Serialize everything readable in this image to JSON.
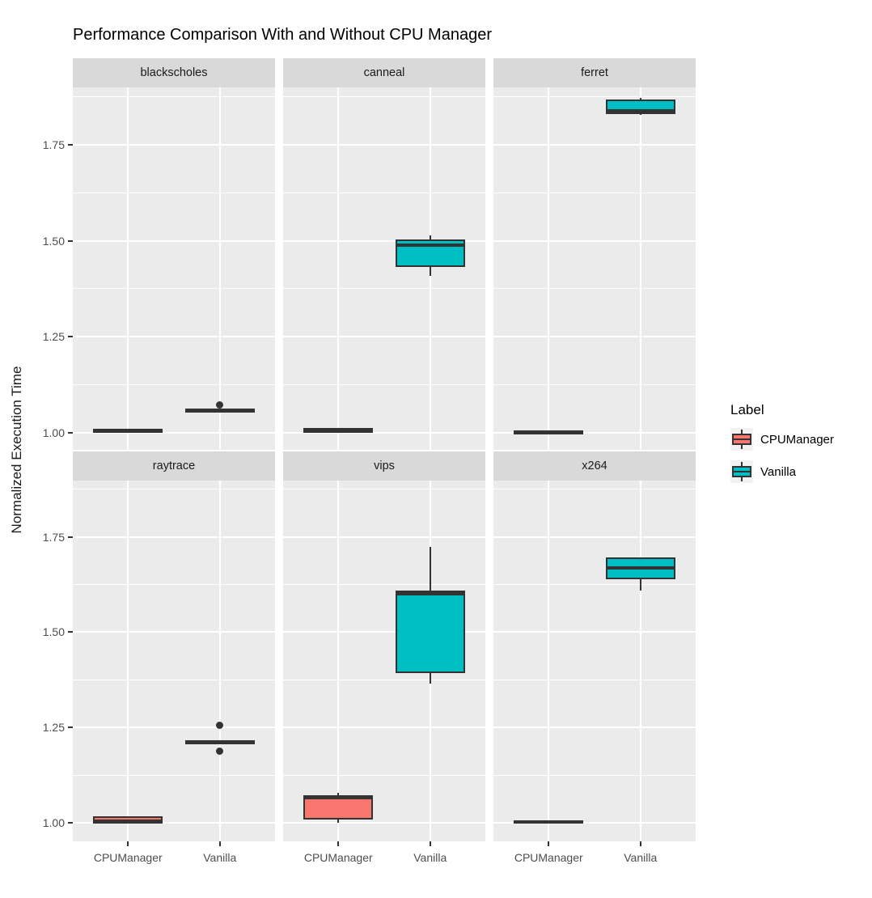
{
  "title": "Performance Comparison With and Without CPU Manager",
  "y_axis": {
    "label": "Normalized Execution Time",
    "ticks": [
      "1.00",
      "1.25",
      "1.50",
      "1.75"
    ]
  },
  "x_axis": {
    "categories": [
      "CPUManager",
      "Vanilla"
    ]
  },
  "legend": {
    "title": "Label",
    "entries": [
      {
        "label": "CPUManager",
        "color": "#F8766D"
      },
      {
        "label": "Vanilla",
        "color": "#00BFC4"
      }
    ]
  },
  "colors": {
    "panel_bg": "#EBEBEB",
    "strip_bg": "#D9D9D9",
    "gridline": "#FFFFFF",
    "box_stroke": "#333333",
    "axis_text": "#4D4D4D",
    "cpumanager_fill": "#F8766D",
    "vanilla_fill": "#00BFC4"
  },
  "chart_data": {
    "type": "boxplot",
    "title": "Performance Comparison With and Without CPU Manager",
    "ylabel": "Normalized Execution Time",
    "xlabel": "",
    "x_categories": [
      "CPUManager",
      "Vanilla"
    ],
    "y_ticks": [
      1.0,
      1.25,
      1.5,
      1.75
    ],
    "ylim": [
      0.95,
      1.9
    ],
    "grid": "on",
    "legend_position": "right",
    "facet_layout": [
      [
        "blackscholes",
        "canneal",
        "ferret"
      ],
      [
        "raytrace",
        "vips",
        "x264"
      ]
    ],
    "facets": [
      {
        "name": "blackscholes",
        "boxes": [
          {
            "group": "CPUManager",
            "color": "#F8766D",
            "whisker_low": 1.004,
            "q1": 1.005,
            "median": 1.007,
            "q3": 1.009,
            "whisker_high": 1.01,
            "outliers": []
          },
          {
            "group": "Vanilla",
            "color": "#00BFC4",
            "whisker_low": 1.054,
            "q1": 1.056,
            "median": 1.058,
            "q3": 1.061,
            "whisker_high": 1.062,
            "outliers": [
              1.072
            ]
          }
        ]
      },
      {
        "name": "canneal",
        "boxes": [
          {
            "group": "CPUManager",
            "color": "#F8766D",
            "whisker_low": 1.0,
            "q1": 1.001,
            "median": 1.006,
            "q3": 1.013,
            "whisker_high": 1.014,
            "outliers": []
          },
          {
            "group": "Vanilla",
            "color": "#00BFC4",
            "whisker_low": 1.409,
            "q1": 1.432,
            "median": 1.489,
            "q3": 1.503,
            "whisker_high": 1.513,
            "outliers": []
          }
        ]
      },
      {
        "name": "ferret",
        "boxes": [
          {
            "group": "CPUManager",
            "color": "#F8766D",
            "whisker_low": 1.0,
            "q1": 1.001,
            "median": 1.003,
            "q3": 1.005,
            "whisker_high": 1.006,
            "outliers": []
          },
          {
            "group": "Vanilla",
            "color": "#00BFC4",
            "whisker_low": 1.827,
            "q1": 1.831,
            "median": 1.838,
            "q3": 1.868,
            "whisker_high": 1.872,
            "outliers": []
          }
        ]
      },
      {
        "name": "raytrace",
        "boxes": [
          {
            "group": "CPUManager",
            "color": "#F8766D",
            "whisker_low": 0.997,
            "q1": 0.998,
            "median": 1.004,
            "q3": 1.017,
            "whisker_high": 1.018,
            "outliers": []
          },
          {
            "group": "Vanilla",
            "color": "#00BFC4",
            "whisker_low": 1.21,
            "q1": 1.211,
            "median": 1.213,
            "q3": 1.215,
            "whisker_high": 1.216,
            "outliers": [
              1.256,
              1.188
            ]
          }
        ]
      },
      {
        "name": "vips",
        "boxes": [
          {
            "group": "CPUManager",
            "color": "#F8766D",
            "whisker_low": 1.0,
            "q1": 1.008,
            "median": 1.066,
            "q3": 1.072,
            "whisker_high": 1.078,
            "outliers": []
          },
          {
            "group": "Vanilla",
            "color": "#00BFC4",
            "whisker_low": 1.365,
            "q1": 1.392,
            "median": 1.6,
            "q3": 1.608,
            "whisker_high": 1.724,
            "outliers": []
          }
        ]
      },
      {
        "name": "x264",
        "boxes": [
          {
            "group": "CPUManager",
            "color": "#F8766D",
            "whisker_low": 1.0,
            "q1": 1.001,
            "median": 1.003,
            "q3": 1.006,
            "whisker_high": 1.007,
            "outliers": []
          },
          {
            "group": "Vanilla",
            "color": "#00BFC4",
            "whisker_low": 1.609,
            "q1": 1.639,
            "median": 1.668,
            "q3": 1.697,
            "whisker_high": 1.698,
            "outliers": []
          }
        ]
      }
    ]
  }
}
